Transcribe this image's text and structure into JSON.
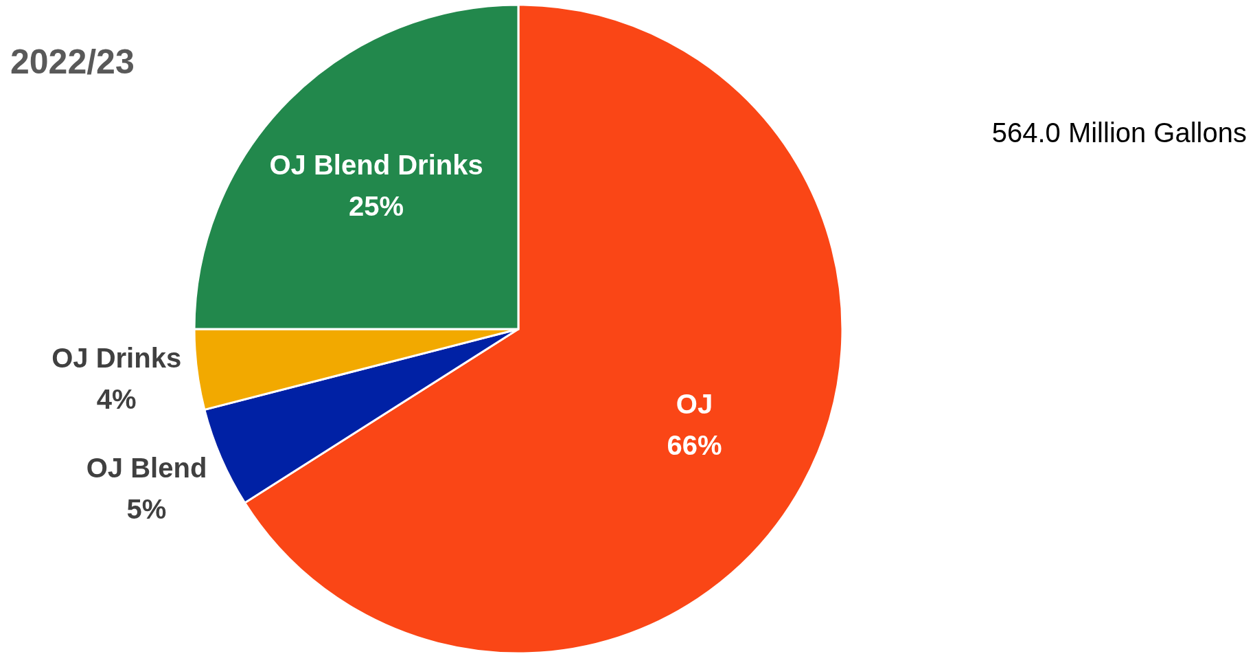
{
  "chart_data": {
    "type": "pie",
    "title": "2022/23",
    "annotations": [
      "564.0 Million Gallons"
    ],
    "categories": [
      "OJ",
      "OJ Blend",
      "OJ Drinks",
      "OJ Blend Drinks"
    ],
    "values": [
      66,
      5,
      4,
      25
    ],
    "colors": [
      "#fa4616",
      "#0021a5",
      "#f2a900",
      "#22884c"
    ],
    "value_labels": [
      "66%",
      "5%",
      "4%",
      "25%"
    ]
  }
}
